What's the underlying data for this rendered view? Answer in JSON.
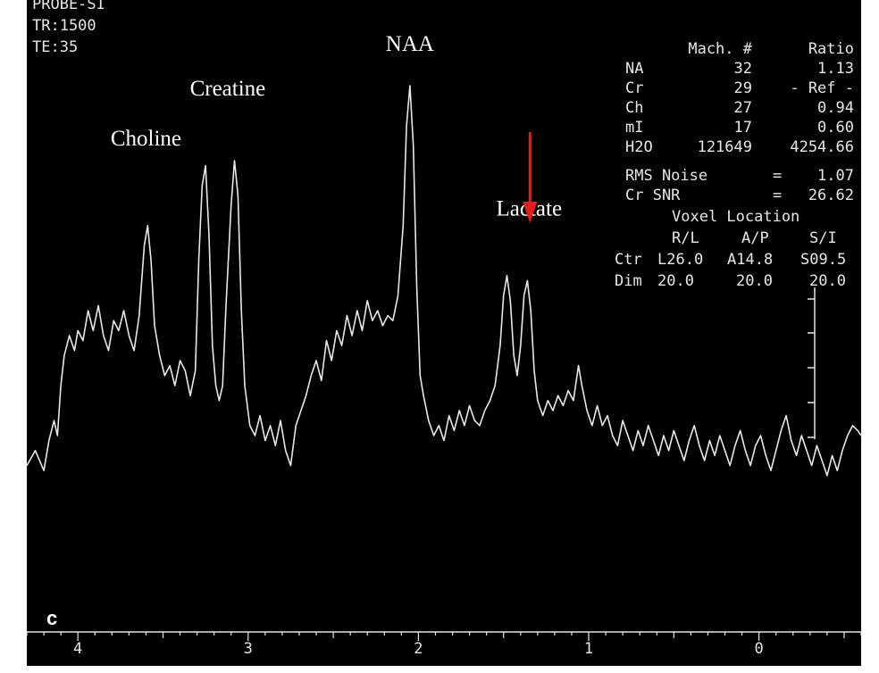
{
  "header": {
    "line0": "PROBE-SI",
    "tr": "TR:1500",
    "te": "TE:35"
  },
  "panel_label": "c",
  "table": {
    "col_mach": "Mach. #",
    "col_ratio": "Ratio",
    "rows": [
      {
        "name": "NA",
        "mach": "32",
        "ratio": "1.13"
      },
      {
        "name": "Cr",
        "mach": "29",
        "ratio": "- Ref -"
      },
      {
        "name": "Ch",
        "mach": "27",
        "ratio": "0.94"
      },
      {
        "name": "mI",
        "mach": "17",
        "ratio": "0.60"
      },
      {
        "name": "H2O",
        "mach": "121649",
        "ratio": "4254.66"
      }
    ],
    "rms_label": "RMS Noise",
    "rms_eq": "=",
    "rms_value": "1.07",
    "snr_label": "Cr SNR",
    "snr_eq": "=",
    "snr_value": "26.62",
    "voxel_title": "Voxel Location",
    "voxel_cols": [
      "R/L",
      "A/P",
      "S/I"
    ],
    "ctr_label": "Ctr",
    "ctr_values": [
      "L26.0",
      "A14.8",
      "S09.5"
    ],
    "dim_label": "Dim",
    "dim_values": [
      "20.0",
      "20.0",
      "20.0"
    ]
  },
  "colors": {
    "background": "#000000",
    "trace": "#e8e8e8",
    "arrow": "#e02020",
    "text": "#ffffff"
  },
  "chart_data": {
    "type": "line",
    "title": "",
    "xlabel": "",
    "ylabel": "",
    "x_reversed": true,
    "xlim": [
      4.3,
      -0.6
    ],
    "ylim": [
      0,
      100
    ],
    "xticks": [
      4,
      3,
      2,
      1,
      0
    ],
    "xtick_labels": [
      "4",
      "3",
      "2",
      "1",
      "0"
    ],
    "grid": false,
    "legend": "none",
    "annotations": [
      {
        "text": "Choline",
        "x": 3.6,
        "y": 78
      },
      {
        "text": "Creatine",
        "x": 3.12,
        "y": 88
      },
      {
        "text": "NAA",
        "x": 2.05,
        "y": 97
      },
      {
        "text": "Lactate",
        "x": 1.35,
        "y": 64,
        "arrow": true
      }
    ],
    "series": [
      {
        "points": [
          [
            4.3,
            14
          ],
          [
            4.25,
            17
          ],
          [
            4.2,
            13
          ],
          [
            4.17,
            19
          ],
          [
            4.14,
            23
          ],
          [
            4.12,
            20
          ],
          [
            4.1,
            30
          ],
          [
            4.08,
            36
          ],
          [
            4.05,
            40
          ],
          [
            4.02,
            37
          ],
          [
            4.0,
            41
          ],
          [
            3.97,
            39
          ],
          [
            3.94,
            45
          ],
          [
            3.91,
            41
          ],
          [
            3.88,
            46
          ],
          [
            3.85,
            40
          ],
          [
            3.82,
            37
          ],
          [
            3.79,
            43
          ],
          [
            3.76,
            41
          ],
          [
            3.73,
            45
          ],
          [
            3.7,
            40
          ],
          [
            3.67,
            37
          ],
          [
            3.64,
            44
          ],
          [
            3.61,
            58
          ],
          [
            3.59,
            62
          ],
          [
            3.57,
            55
          ],
          [
            3.55,
            42
          ],
          [
            3.52,
            36
          ],
          [
            3.49,
            32
          ],
          [
            3.46,
            34
          ],
          [
            3.43,
            30
          ],
          [
            3.4,
            35
          ],
          [
            3.37,
            33
          ],
          [
            3.34,
            28
          ],
          [
            3.31,
            33
          ],
          [
            3.29,
            55
          ],
          [
            3.27,
            70
          ],
          [
            3.25,
            74
          ],
          [
            3.23,
            60
          ],
          [
            3.21,
            38
          ],
          [
            3.19,
            30
          ],
          [
            3.17,
            27
          ],
          [
            3.15,
            30
          ],
          [
            3.13,
            46
          ],
          [
            3.1,
            66
          ],
          [
            3.08,
            75
          ],
          [
            3.06,
            68
          ],
          [
            3.04,
            45
          ],
          [
            3.02,
            30
          ],
          [
            2.99,
            22
          ],
          [
            2.96,
            20
          ],
          [
            2.93,
            24
          ],
          [
            2.9,
            19
          ],
          [
            2.87,
            22
          ],
          [
            2.84,
            18
          ],
          [
            2.81,
            23
          ],
          [
            2.78,
            17
          ],
          [
            2.75,
            14
          ],
          [
            2.72,
            22
          ],
          [
            2.69,
            25
          ],
          [
            2.66,
            28
          ],
          [
            2.63,
            32
          ],
          [
            2.6,
            35
          ],
          [
            2.57,
            31
          ],
          [
            2.54,
            39
          ],
          [
            2.51,
            35
          ],
          [
            2.48,
            41
          ],
          [
            2.45,
            38
          ],
          [
            2.42,
            44
          ],
          [
            2.39,
            40
          ],
          [
            2.36,
            45
          ],
          [
            2.33,
            41
          ],
          [
            2.3,
            47
          ],
          [
            2.27,
            43
          ],
          [
            2.24,
            45
          ],
          [
            2.21,
            42
          ],
          [
            2.18,
            44
          ],
          [
            2.15,
            43
          ],
          [
            2.12,
            48
          ],
          [
            2.09,
            62
          ],
          [
            2.07,
            82
          ],
          [
            2.05,
            90
          ],
          [
            2.03,
            78
          ],
          [
            2.01,
            50
          ],
          [
            1.99,
            32
          ],
          [
            1.97,
            28
          ],
          [
            1.94,
            23
          ],
          [
            1.91,
            20
          ],
          [
            1.88,
            22
          ],
          [
            1.85,
            19
          ],
          [
            1.82,
            24
          ],
          [
            1.79,
            21
          ],
          [
            1.76,
            25
          ],
          [
            1.73,
            22
          ],
          [
            1.7,
            26
          ],
          [
            1.67,
            23
          ],
          [
            1.64,
            22
          ],
          [
            1.61,
            25
          ],
          [
            1.58,
            27
          ],
          [
            1.55,
            30
          ],
          [
            1.52,
            38
          ],
          [
            1.5,
            48
          ],
          [
            1.48,
            52
          ],
          [
            1.46,
            47
          ],
          [
            1.44,
            36
          ],
          [
            1.42,
            32
          ],
          [
            1.4,
            38
          ],
          [
            1.38,
            48
          ],
          [
            1.36,
            51
          ],
          [
            1.34,
            45
          ],
          [
            1.32,
            33
          ],
          [
            1.3,
            27
          ],
          [
            1.27,
            24
          ],
          [
            1.24,
            27
          ],
          [
            1.21,
            25
          ],
          [
            1.18,
            28
          ],
          [
            1.15,
            26
          ],
          [
            1.12,
            29
          ],
          [
            1.09,
            27
          ],
          [
            1.06,
            34
          ],
          [
            1.04,
            30
          ],
          [
            1.01,
            25
          ],
          [
            0.98,
            22
          ],
          [
            0.95,
            26
          ],
          [
            0.92,
            22
          ],
          [
            0.89,
            24
          ],
          [
            0.86,
            20
          ],
          [
            0.83,
            18
          ],
          [
            0.8,
            23
          ],
          [
            0.77,
            20
          ],
          [
            0.74,
            17
          ],
          [
            0.71,
            21
          ],
          [
            0.68,
            18
          ],
          [
            0.65,
            22
          ],
          [
            0.62,
            19
          ],
          [
            0.59,
            16
          ],
          [
            0.56,
            20
          ],
          [
            0.53,
            17
          ],
          [
            0.5,
            21
          ],
          [
            0.47,
            18
          ],
          [
            0.44,
            15
          ],
          [
            0.41,
            19
          ],
          [
            0.38,
            22
          ],
          [
            0.35,
            18
          ],
          [
            0.32,
            15
          ],
          [
            0.29,
            19
          ],
          [
            0.26,
            16
          ],
          [
            0.23,
            20
          ],
          [
            0.2,
            17
          ],
          [
            0.17,
            14
          ],
          [
            0.14,
            18
          ],
          [
            0.11,
            21
          ],
          [
            0.08,
            17
          ],
          [
            0.05,
            14
          ],
          [
            0.02,
            18
          ],
          [
            -0.01,
            20
          ],
          [
            -0.04,
            16
          ],
          [
            -0.07,
            13
          ],
          [
            -0.1,
            17
          ],
          [
            -0.13,
            21
          ],
          [
            -0.16,
            24
          ],
          [
            -0.19,
            19
          ],
          [
            -0.22,
            16
          ],
          [
            -0.25,
            20
          ],
          [
            -0.28,
            17
          ],
          [
            -0.31,
            14
          ],
          [
            -0.34,
            18
          ],
          [
            -0.37,
            15
          ],
          [
            -0.4,
            12
          ],
          [
            -0.43,
            16
          ],
          [
            -0.46,
            13
          ],
          [
            -0.49,
            17
          ],
          [
            -0.52,
            20
          ],
          [
            -0.55,
            22
          ],
          [
            -0.58,
            21
          ],
          [
            -0.6,
            20
          ]
        ]
      }
    ]
  }
}
